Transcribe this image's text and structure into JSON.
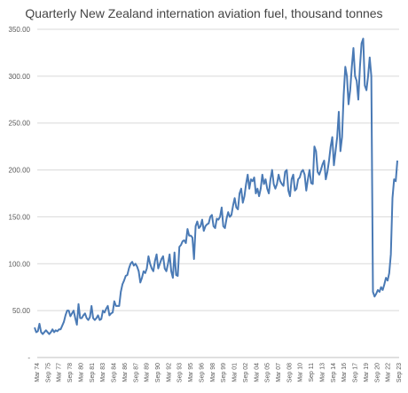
{
  "chart_data": {
    "type": "line",
    "title": "Quarterly New Zealand internation aviation fuel, thousand tonnes",
    "xlabel": "",
    "ylabel": "",
    "ylim": [
      0,
      350
    ],
    "yticks": [
      "350.00",
      "300.00",
      "250.00",
      "200.00",
      "150.00",
      "100.00",
      "50.00",
      "-"
    ],
    "ytick_values": [
      350,
      300,
      250,
      200,
      150,
      100,
      50,
      0
    ],
    "xticks": [
      "Mar 74",
      "Sep 75",
      "Mar 77",
      "Sep 78",
      "Mar 80",
      "Sep 81",
      "Mar 83",
      "Sep 84",
      "Mar 86",
      "Sep 87",
      "Mar 89",
      "Sep 90",
      "Mar 92",
      "Sep 93",
      "Mar 95",
      "Sep 96",
      "Mar 98",
      "Sep 99",
      "Mar 01",
      "Sep 02",
      "Mar 04",
      "Sep 05",
      "Mar 07",
      "Sep 08",
      "Mar 10",
      "Sep 11",
      "Mar 13",
      "Sep 14",
      "Mar 16",
      "Sep 17",
      "Mar 19",
      "Sep 20",
      "Mar 22",
      "Sep 23"
    ],
    "grid": true,
    "legend": "none",
    "series_color": "#4a7ab5",
    "series": [
      {
        "values": [
          32,
          27,
          28,
          36,
          27,
          25,
          27,
          29,
          27,
          25,
          27,
          30,
          27,
          29,
          28,
          30,
          30,
          34,
          38,
          45,
          50,
          50,
          44,
          47,
          50,
          42,
          35,
          57,
          42,
          42,
          45,
          47,
          42,
          40,
          43,
          55,
          42,
          40,
          42,
          45,
          40,
          41,
          50,
          48,
          52,
          55,
          45,
          47,
          48,
          60,
          55,
          55,
          55,
          70,
          78,
          82,
          87,
          88,
          95,
          100,
          102,
          98,
          100,
          97,
          92,
          80,
          85,
          92,
          90,
          95,
          108,
          100,
          95,
          92,
          103,
          110,
          95,
          100,
          105,
          108,
          95,
          92,
          100,
          110,
          92,
          85,
          112,
          88,
          87,
          118,
          120,
          124,
          125,
          122,
          137,
          130,
          130,
          128,
          105,
          140,
          145,
          138,
          140,
          147,
          135,
          140,
          142,
          143,
          150,
          152,
          140,
          138,
          148,
          147,
          150,
          160,
          140,
          138,
          148,
          155,
          150,
          152,
          162,
          170,
          160,
          158,
          175,
          180,
          165,
          172,
          185,
          195,
          180,
          190,
          188,
          192,
          175,
          180,
          172,
          180,
          195,
          185,
          190,
          180,
          175,
          190,
          200,
          185,
          180,
          185,
          195,
          188,
          185,
          183,
          198,
          200,
          178,
          172,
          190,
          195,
          178,
          180,
          190,
          192,
          198,
          200,
          195,
          178,
          190,
          200,
          186,
          185,
          225,
          220,
          198,
          195,
          200,
          206,
          210,
          190,
          198,
          210,
          225,
          235,
          205,
          220,
          235,
          262,
          220,
          235,
          280,
          310,
          300,
          270,
          285,
          310,
          330,
          300,
          295,
          275,
          310,
          335,
          340,
          290,
          285,
          300,
          320,
          300,
          70,
          65,
          68,
          72,
          70,
          75,
          72,
          78,
          85,
          82,
          90,
          110,
          170,
          190,
          188,
          210
        ]
      }
    ]
  }
}
